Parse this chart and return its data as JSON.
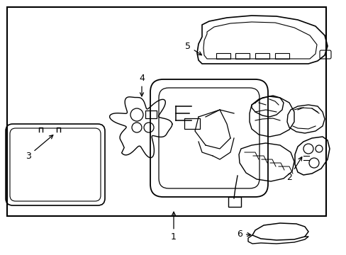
{
  "background_color": "#ffffff",
  "line_color": "#000000",
  "label_color": "#000000",
  "arrow_color": "#000000",
  "fig_width": 4.89,
  "fig_height": 3.6,
  "dpi": 100
}
